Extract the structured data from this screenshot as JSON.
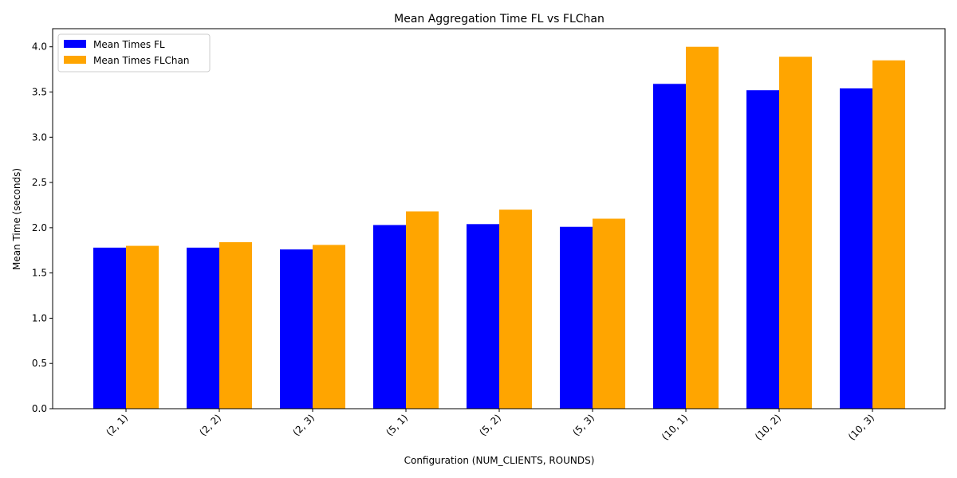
{
  "chart_data": {
    "type": "bar",
    "title": "Mean Aggregation Time FL vs FLChan",
    "xlabel": "Configuration (NUM_CLIENTS, ROUNDS)",
    "ylabel": "Mean Time (seconds)",
    "categories": [
      "(2, 1)",
      "(2, 2)",
      "(2, 3)",
      "(5, 1)",
      "(5, 2)",
      "(5, 3)",
      "(10, 1)",
      "(10, 2)",
      "(10, 3)"
    ],
    "series": [
      {
        "name": "Mean Times FL",
        "color": "#0000ff",
        "values": [
          1.78,
          1.78,
          1.76,
          2.03,
          2.04,
          2.01,
          3.59,
          3.52,
          3.54
        ]
      },
      {
        "name": "Mean Times FLChan",
        "color": "#ffa500",
        "values": [
          1.8,
          1.84,
          1.81,
          2.18,
          2.2,
          2.1,
          4.0,
          3.89,
          3.85
        ]
      }
    ],
    "ylim": [
      0,
      4.2
    ],
    "yticks": [
      0.0,
      0.5,
      1.0,
      1.5,
      2.0,
      2.5,
      3.0,
      3.5,
      4.0
    ],
    "ytick_labels": [
      "0.0",
      "0.5",
      "1.0",
      "1.5",
      "2.0",
      "2.5",
      "3.0",
      "3.5",
      "4.0"
    ],
    "legend_position": "top-left",
    "grid": false
  }
}
